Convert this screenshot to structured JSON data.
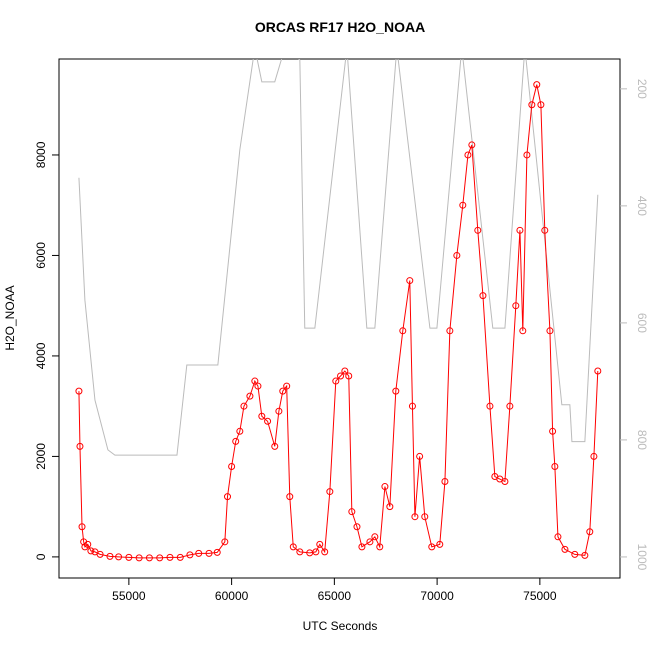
{
  "chart_data": {
    "type": "line",
    "title": "ORCAS RF17 H2O_NOAA",
    "x_label": "UTC Seconds",
    "y_label": "H2O_NOAA",
    "xlim": [
      51600,
      78900
    ],
    "ylim": [
      -420,
      9910
    ],
    "y2lim": [
      1036,
      149
    ],
    "xticks": [
      55000,
      60000,
      65000,
      70000,
      75000
    ],
    "yticks": [
      0,
      2000,
      4000,
      6000,
      8000
    ],
    "y2ticks": [
      200,
      400,
      600,
      800,
      1000
    ],
    "y2_tick_color": "#bbbbbb",
    "series": [
      {
        "color": "#bbbbbb",
        "axis": "y2",
        "markers": false,
        "x": [
          52570,
          52860,
          53350,
          53980,
          54320,
          57340,
          57820,
          59330,
          60400,
          61130,
          61470,
          62100,
          62590,
          63320,
          63560,
          64050,
          65610,
          66580,
          66970,
          68040,
          69650,
          69990,
          71200,
          72710,
          73300,
          74270,
          76070,
          76460,
          76560,
          77190,
          77820
        ],
        "values": [
          352,
          561,
          732,
          817,
          826,
          826,
          672,
          672,
          304,
          130,
          188,
          188,
          130,
          150,
          609,
          609,
          130,
          609,
          609,
          130,
          609,
          609,
          130,
          609,
          609,
          130,
          740,
          740,
          803,
          803,
          381
        ]
      },
      {
        "color": "#ff0000",
        "axis": "y",
        "markers": true,
        "x": [
          52570,
          52620,
          52720,
          52800,
          52860,
          53000,
          53150,
          53350,
          53600,
          54080,
          54500,
          55000,
          55500,
          56000,
          56500,
          57000,
          57500,
          57970,
          58400,
          58900,
          59300,
          59670,
          59800,
          60000,
          60200,
          60400,
          60600,
          60890,
          61130,
          61280,
          61470,
          61750,
          62100,
          62300,
          62490,
          62680,
          62830,
          63000,
          63320,
          63800,
          64100,
          64290,
          64530,
          64780,
          65070,
          65300,
          65510,
          65700,
          65850,
          66100,
          66340,
          66730,
          66970,
          67210,
          67460,
          67700,
          67990,
          68330,
          68670,
          68800,
          68920,
          69150,
          69400,
          69740,
          70130,
          70380,
          70620,
          70960,
          71250,
          71500,
          71690,
          71980,
          72230,
          72570,
          72810,
          73050,
          73300,
          73540,
          73830,
          74030,
          74170,
          74370,
          74610,
          74850,
          75050,
          75240,
          75490,
          75620,
          75730,
          75880,
          76220,
          76700,
          77190,
          77430,
          77630,
          77820
        ],
        "values": [
          3300,
          2200,
          600,
          300,
          200,
          250,
          120,
          100,
          50,
          10,
          0,
          -10,
          -20,
          -20,
          -20,
          -10,
          -10,
          40,
          70,
          70,
          90,
          300,
          1200,
          1800,
          2300,
          2500,
          3000,
          3200,
          3500,
          3400,
          2800,
          2700,
          2200,
          2900,
          3300,
          3400,
          1200,
          200,
          100,
          80,
          100,
          250,
          100,
          1300,
          3500,
          3600,
          3700,
          3600,
          900,
          600,
          200,
          300,
          400,
          200,
          1400,
          1000,
          3300,
          4500,
          5500,
          3000,
          800,
          2000,
          800,
          200,
          250,
          1500,
          4500,
          6000,
          7000,
          8000,
          8200,
          6500,
          5200,
          3000,
          1600,
          1550,
          1500,
          3000,
          5000,
          6500,
          4500,
          8000,
          9000,
          9400,
          9000,
          6500,
          4500,
          2500,
          1800,
          400,
          150,
          50,
          30,
          500,
          2000,
          3700
        ]
      }
    ]
  }
}
